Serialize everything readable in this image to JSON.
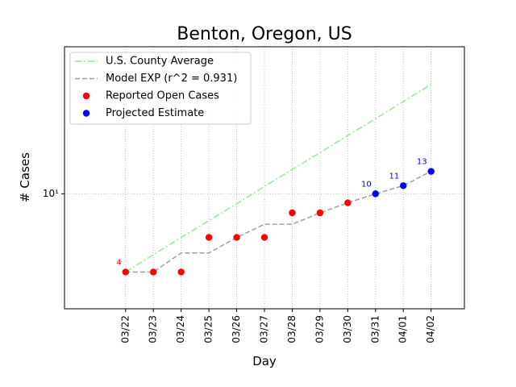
{
  "chart_data": {
    "type": "line",
    "title": "Benton, Oregon, US",
    "xlabel": "Day",
    "ylabel": "# Cases",
    "categories": [
      "03/22",
      "03/23",
      "03/24",
      "03/25",
      "03/26",
      "03/27",
      "03/28",
      "03/29",
      "03/30",
      "03/31",
      "04/01",
      "04/02"
    ],
    "ylim": [
      2.6,
      56
    ],
    "yscale": "log",
    "yticks": [
      {
        "value": 10,
        "label": "10¹"
      }
    ],
    "grid": true,
    "legend": "upper left",
    "series": [
      {
        "name": "U.S. County Average",
        "color": "#90ee90",
        "style": "dashdot",
        "values": [
          4,
          4.9,
          6.0,
          7.3,
          8.9,
          10.9,
          13.3,
          16.2,
          19.8,
          24.1,
          29.5,
          36
        ]
      },
      {
        "name": "Model EXP (r^2 = 0.931)",
        "color": "#a0a0a0",
        "style": "dashed",
        "values": [
          4,
          4,
          5,
          5,
          6,
          7,
          7,
          8,
          9,
          10,
          11,
          13
        ]
      },
      {
        "name": "Reported Open Cases",
        "color": "#ff0000",
        "style": "marker",
        "values": [
          4,
          4,
          4,
          6,
          6,
          6,
          8,
          8,
          9,
          null,
          null,
          null
        ],
        "value_labels": [
          "4",
          null,
          null,
          null,
          null,
          null,
          null,
          null,
          null,
          null,
          null,
          null
        ]
      },
      {
        "name": "Projected Estimate",
        "color": "#0000ff",
        "style": "marker",
        "values": [
          null,
          null,
          null,
          null,
          null,
          null,
          null,
          null,
          null,
          10,
          11,
          13
        ],
        "value_labels": [
          null,
          null,
          null,
          null,
          null,
          null,
          null,
          null,
          null,
          "10",
          "11",
          "13"
        ]
      }
    ]
  }
}
